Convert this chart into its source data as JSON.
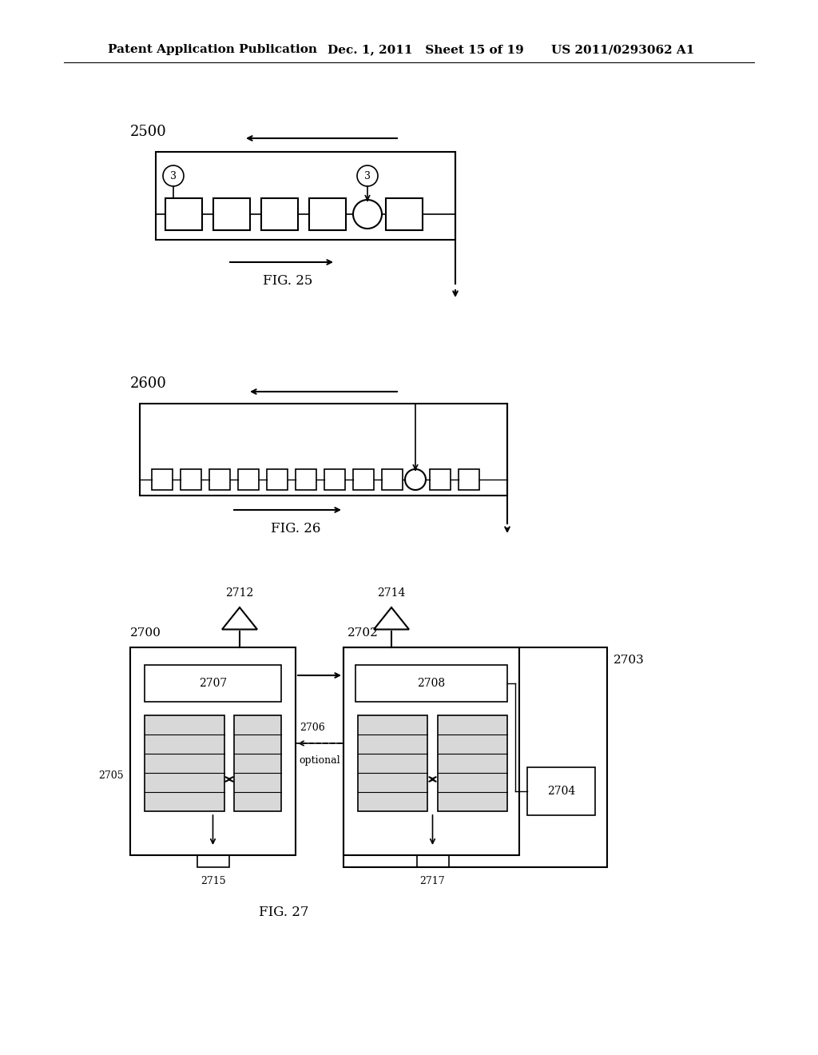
{
  "header_left": "Patent Application Publication",
  "header_mid": "Dec. 1, 2011   Sheet 15 of 19",
  "header_right": "US 2011/0293062 A1",
  "bg_color": "#ffffff",
  "line_color": "#000000",
  "fig25_label": "2500",
  "fig25_caption": "FIG. 25",
  "fig26_label": "2600",
  "fig26_caption": "FIG. 26",
  "fig27_caption": "FIG. 27",
  "fig27_labels": {
    "main_left": "2700",
    "main_right": "2702",
    "outer_right": "2703",
    "box2704": "2704",
    "box2705": "2705",
    "box2706": "2706",
    "box2707": "2707",
    "box2708": "2708",
    "ant_left": "2712",
    "ant_right": "2714",
    "bot_left": "2715",
    "bot_right": "2717",
    "optional": "optional"
  }
}
